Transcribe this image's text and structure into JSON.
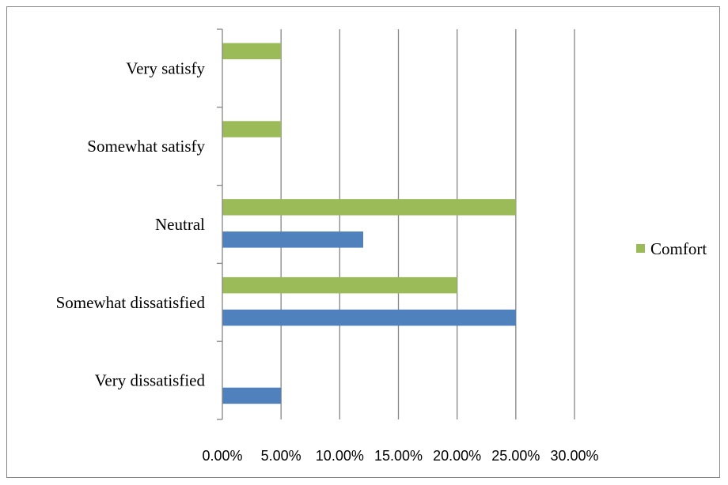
{
  "chart_data": {
    "type": "bar",
    "orientation": "horizontal",
    "categories": [
      "Very satisfy",
      "Somewhat satisfy",
      "Neutral",
      "Somewhat dissatisfied",
      "Very dissatisfied"
    ],
    "series": [
      {
        "name": "Comfort",
        "color": "#9BBB59",
        "values": [
          0.05,
          0.05,
          0.25,
          0.2,
          0.0
        ]
      },
      {
        "color": "#4F81BD",
        "values": [
          0.0,
          0.0,
          0.12,
          0.25,
          0.05
        ]
      }
    ],
    "xlim": [
      0,
      0.3
    ],
    "x_ticks": [
      0,
      0.05,
      0.1,
      0.15,
      0.2,
      0.25,
      0.3
    ],
    "x_tick_labels": [
      "0.00%",
      "5.00%",
      "10.00%",
      "15.00%",
      "20.00%",
      "25.00%",
      "30.00%"
    ],
    "grid": "vertical",
    "legend": {
      "position": "right",
      "entries": [
        "Comfort"
      ]
    },
    "title": "",
    "xlabel": "",
    "ylabel": ""
  }
}
